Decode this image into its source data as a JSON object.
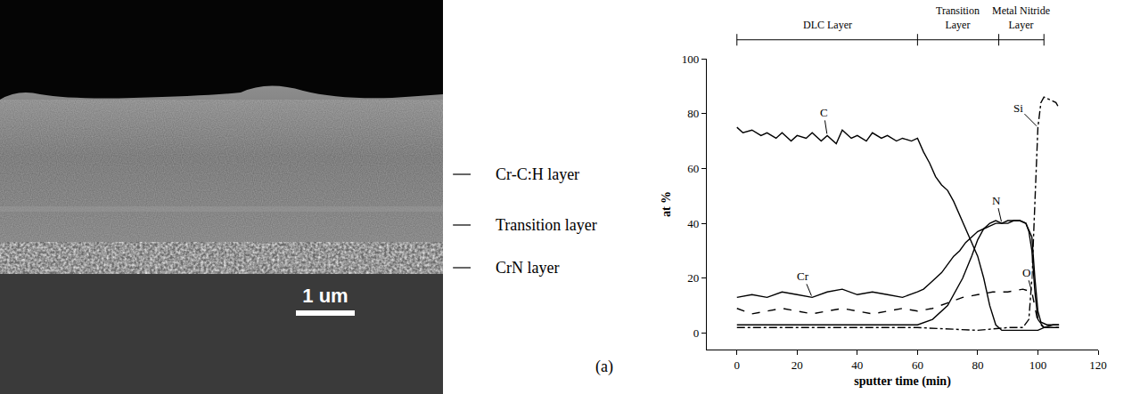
{
  "micrograph": {
    "layer_labels": [
      "Cr-C:H layer",
      "Transition layer",
      "CrN layer"
    ],
    "scale_bar": "1 um",
    "panel": "(a)"
  },
  "chart_data": {
    "type": "line",
    "xlabel": "sputter time (min)",
    "ylabel": "at %",
    "xlim": [
      -10,
      120
    ],
    "xticks": [
      0,
      20,
      40,
      60,
      80,
      100,
      120
    ],
    "ylim": [
      -6,
      100
    ],
    "yticks": [
      0,
      20,
      40,
      60,
      80,
      100
    ],
    "grid": false,
    "regions": [
      {
        "label": "DLC Layer",
        "start": 0,
        "end": 60
      },
      {
        "label": "Transition Layer",
        "start": 60,
        "end": 87
      },
      {
        "label": "Metal Nitride Layer",
        "start": 87,
        "end": 102
      }
    ],
    "series": [
      {
        "name": "C",
        "color": "#000000",
        "line_style": "solid",
        "x": [
          0,
          2,
          5,
          8,
          10,
          13,
          15,
          18,
          20,
          23,
          25,
          28,
          30,
          33,
          35,
          38,
          40,
          43,
          45,
          48,
          50,
          53,
          55,
          58,
          60,
          62,
          64,
          66,
          68,
          70,
          72,
          74,
          76,
          78,
          80,
          82,
          84,
          86,
          88,
          90,
          95,
          100,
          102,
          105,
          107
        ],
        "values": [
          75,
          73,
          74,
          72,
          73,
          71,
          73,
          70,
          72,
          71,
          73,
          70,
          72,
          69,
          74,
          71,
          72,
          70,
          73,
          71,
          72,
          70,
          71,
          70,
          71,
          66,
          62,
          57,
          54,
          52,
          48,
          43,
          38,
          33,
          28,
          20,
          10,
          3,
          1,
          1,
          1,
          1,
          2,
          3,
          3
        ]
      },
      {
        "name": "Cr",
        "color": "#000000",
        "line_style": "solid",
        "x": [
          0,
          5,
          10,
          15,
          20,
          25,
          30,
          35,
          40,
          45,
          50,
          55,
          60,
          62,
          64,
          66,
          68,
          70,
          72,
          74,
          76,
          78,
          80,
          82,
          84,
          86,
          88,
          90,
          92,
          94,
          96,
          98,
          99,
          100,
          101,
          103,
          107
        ],
        "values": [
          13,
          14,
          13,
          15,
          14,
          13,
          15,
          16,
          14,
          15,
          14,
          13,
          15,
          16,
          18,
          20,
          22,
          25,
          28,
          30,
          33,
          35,
          37,
          38,
          39,
          40,
          40,
          41,
          41,
          41,
          40,
          35,
          20,
          8,
          4,
          3,
          3
        ]
      },
      {
        "name": "N",
        "color": "#000000",
        "line_style": "solid",
        "x": [
          0,
          10,
          20,
          30,
          40,
          50,
          60,
          65,
          70,
          75,
          78,
          80,
          82,
          84,
          86,
          88,
          90,
          92,
          94,
          96,
          97,
          98,
          99,
          100,
          102,
          107
        ],
        "values": [
          3,
          3,
          3,
          3,
          3,
          3,
          3,
          5,
          10,
          20,
          28,
          34,
          38,
          40,
          41,
          40,
          40,
          41,
          41,
          40,
          37,
          30,
          15,
          5,
          2,
          2
        ]
      },
      {
        "name": "O",
        "color": "#000000",
        "line_style": "dash",
        "x": [
          0,
          5,
          10,
          15,
          20,
          25,
          30,
          35,
          40,
          45,
          50,
          55,
          60,
          65,
          70,
          75,
          80,
          85,
          90,
          95,
          98,
          99,
          100,
          102,
          107
        ],
        "values": [
          9,
          7,
          8,
          9,
          8,
          7,
          8,
          9,
          8,
          7,
          8,
          9,
          8,
          9,
          11,
          13,
          14,
          15,
          15,
          16,
          15,
          10,
          4,
          2,
          2
        ]
      },
      {
        "name": "Si",
        "color": "#000000",
        "line_style": "dashdot",
        "x": [
          0,
          20,
          40,
          60,
          80,
          90,
          95,
          97,
          98,
          99,
          100,
          101,
          102,
          104,
          106,
          107
        ],
        "values": [
          2,
          2,
          2,
          2,
          1,
          2,
          2,
          5,
          20,
          50,
          75,
          84,
          86,
          85,
          84,
          82
        ]
      }
    ]
  }
}
